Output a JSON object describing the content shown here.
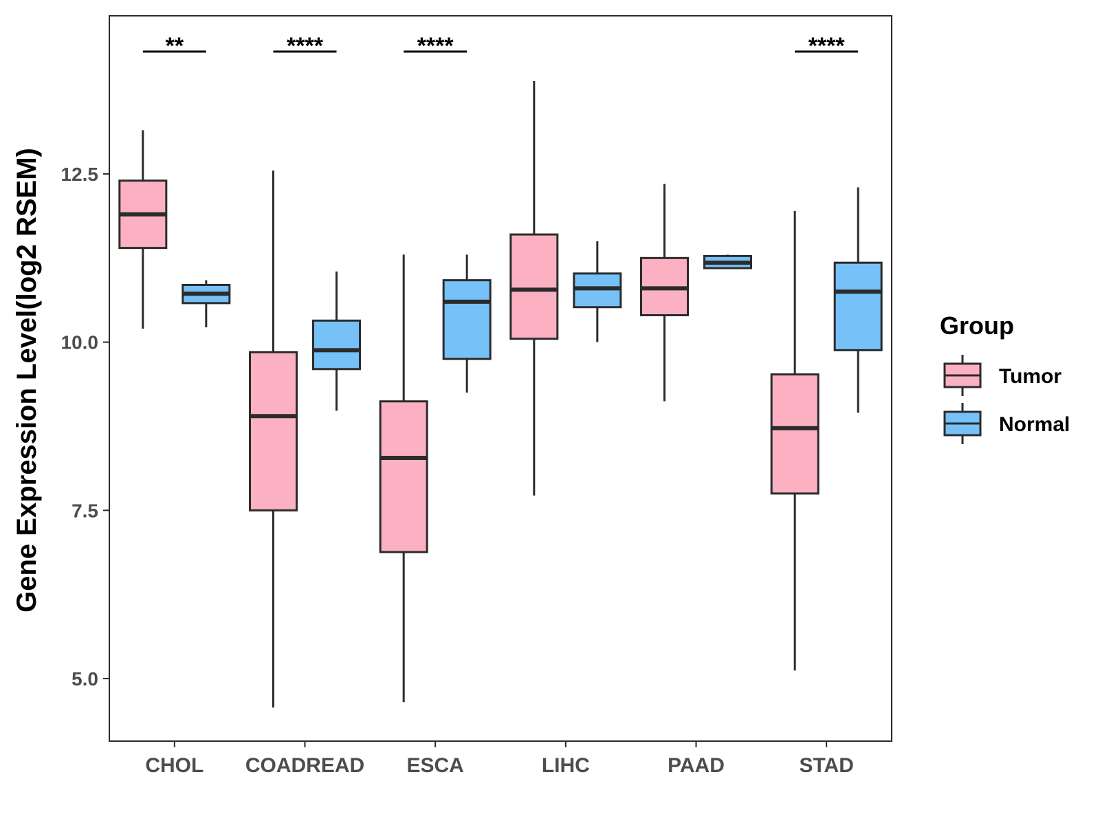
{
  "chart_data": {
    "type": "boxplot",
    "title": "",
    "xlabel": "",
    "ylabel": "Gene Expression Level(log2 RSEM)",
    "ylim": [
      4.07,
      14.85
    ],
    "yticks": [
      5.0,
      7.5,
      10.0,
      12.5
    ],
    "ytick_labels": [
      "5.0",
      "7.5",
      "10.0",
      "12.5"
    ],
    "categories": [
      "CHOL",
      "COADREAD",
      "ESCA",
      "LIHC",
      "PAAD",
      "STAD"
    ],
    "legend": {
      "title": "Group",
      "position": "right",
      "entries": [
        {
          "name": "Tumor",
          "color": "#FBB1C1"
        },
        {
          "name": "Normal",
          "color": "#75C1F8"
        }
      ]
    },
    "series": [
      {
        "name": "Tumor",
        "color": "#FBB1C1",
        "boxes": [
          {
            "category": "CHOL",
            "whisker_low": 10.2,
            "q1": 11.4,
            "median": 11.9,
            "q3": 12.4,
            "whisker_high": 13.15
          },
          {
            "category": "COADREAD",
            "whisker_low": 4.57,
            "q1": 7.5,
            "median": 8.9,
            "q3": 9.85,
            "whisker_high": 12.55
          },
          {
            "category": "ESCA",
            "whisker_low": 4.65,
            "q1": 6.88,
            "median": 8.28,
            "q3": 9.12,
            "whisker_high": 11.3
          },
          {
            "category": "LIHC",
            "whisker_low": 7.72,
            "q1": 10.05,
            "median": 10.78,
            "q3": 11.6,
            "whisker_high": 13.88
          },
          {
            "category": "PAAD",
            "whisker_low": 9.12,
            "q1": 10.4,
            "median": 10.8,
            "q3": 11.25,
            "whisker_high": 12.35
          },
          {
            "category": "STAD",
            "whisker_low": 5.12,
            "q1": 7.75,
            "median": 8.72,
            "q3": 9.52,
            "whisker_high": 11.95
          }
        ]
      },
      {
        "name": "Normal",
        "color": "#75C1F8",
        "boxes": [
          {
            "category": "CHOL",
            "whisker_low": 10.22,
            "q1": 10.58,
            "median": 10.72,
            "q3": 10.85,
            "whisker_high": 10.92
          },
          {
            "category": "COADREAD",
            "whisker_low": 8.98,
            "q1": 9.6,
            "median": 9.88,
            "q3": 10.32,
            "whisker_high": 11.05
          },
          {
            "category": "ESCA",
            "whisker_low": 9.25,
            "q1": 9.75,
            "median": 10.6,
            "q3": 10.92,
            "whisker_high": 11.3
          },
          {
            "category": "LIHC",
            "whisker_low": 10.0,
            "q1": 10.52,
            "median": 10.8,
            "q3": 11.02,
            "whisker_high": 11.5
          },
          {
            "category": "PAAD",
            "whisker_low": 11.1,
            "q1": 11.1,
            "median": 11.18,
            "q3": 11.28,
            "whisker_high": 11.3
          },
          {
            "category": "STAD",
            "whisker_low": 8.95,
            "q1": 9.88,
            "median": 10.75,
            "q3": 11.18,
            "whisker_high": 12.3
          }
        ]
      }
    ],
    "significance": [
      {
        "category": "CHOL",
        "label": "**"
      },
      {
        "category": "COADREAD",
        "label": "****"
      },
      {
        "category": "ESCA",
        "label": "****"
      },
      {
        "category": "STAD",
        "label": "****"
      }
    ]
  }
}
